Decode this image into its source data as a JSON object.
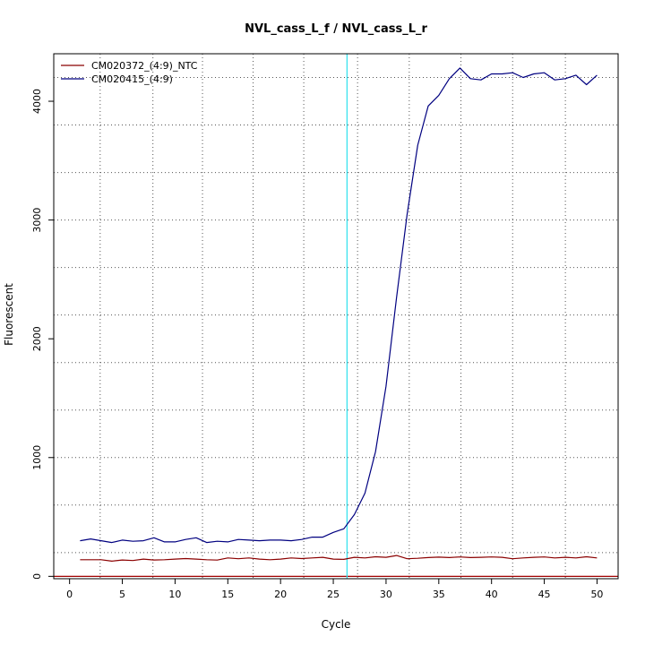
{
  "chart_data": {
    "type": "line",
    "title": "NVL_cass_L_f / NVL_cass_L_r",
    "xlabel": "Cycle",
    "ylabel": "Fluorescent",
    "xlim": [
      -1.5,
      52
    ],
    "ylim": [
      -20,
      4400
    ],
    "x_ticks": [
      0,
      5,
      10,
      15,
      20,
      25,
      30,
      35,
      40,
      45,
      50
    ],
    "y_ticks": [
      0,
      1000,
      2000,
      3000,
      4000
    ],
    "grid": true,
    "grid_x": [
      2.9,
      7.9,
      12.6,
      17.4,
      22.2,
      27.3,
      32.2,
      37.1,
      42.0,
      47.0
    ],
    "grid_y": [
      200,
      600,
      1000,
      1400,
      1800,
      2200,
      2600,
      3000,
      3400,
      3800,
      4200
    ],
    "threshold_cycle": 26.3,
    "threshold_color": "#2ee0ee",
    "baseline": 0,
    "baseline_color": "#a00000",
    "legend_position": "top-left",
    "x": [
      1,
      2,
      3,
      4,
      5,
      6,
      7,
      8,
      9,
      10,
      11,
      12,
      13,
      14,
      15,
      16,
      17,
      18,
      19,
      20,
      21,
      22,
      23,
      24,
      25,
      26,
      27,
      28,
      29,
      30,
      31,
      32,
      33,
      34,
      35,
      36,
      37,
      38,
      39,
      40,
      41,
      42,
      43,
      44,
      45,
      46,
      47,
      48,
      49,
      50
    ],
    "series": [
      {
        "name": "CM020372_(4:9)_NTC",
        "color": "#8b0000",
        "values": [
          140,
          140,
          140,
          128,
          138,
          133,
          145,
          138,
          140,
          145,
          150,
          145,
          140,
          137,
          155,
          148,
          155,
          145,
          140,
          145,
          155,
          150,
          155,
          160,
          145,
          143,
          160,
          155,
          165,
          160,
          175,
          148,
          152,
          158,
          162,
          158,
          163,
          158,
          160,
          163,
          160,
          148,
          155,
          160,
          163,
          155,
          160,
          155,
          165,
          155
        ]
      },
      {
        "name": "CM020415_(4:9)",
        "color": "#000080",
        "values": [
          300,
          315,
          300,
          285,
          305,
          295,
          300,
          325,
          290,
          290,
          310,
          325,
          285,
          295,
          290,
          310,
          305,
          300,
          305,
          305,
          300,
          310,
          330,
          330,
          370,
          400,
          520,
          700,
          1050,
          1600,
          2350,
          3050,
          3630,
          3960,
          4050,
          4190,
          4280,
          4190,
          4180,
          4230,
          4230,
          4240,
          4200,
          4230,
          4240,
          4180,
          4190,
          4220,
          4140,
          4220
        ]
      }
    ]
  }
}
